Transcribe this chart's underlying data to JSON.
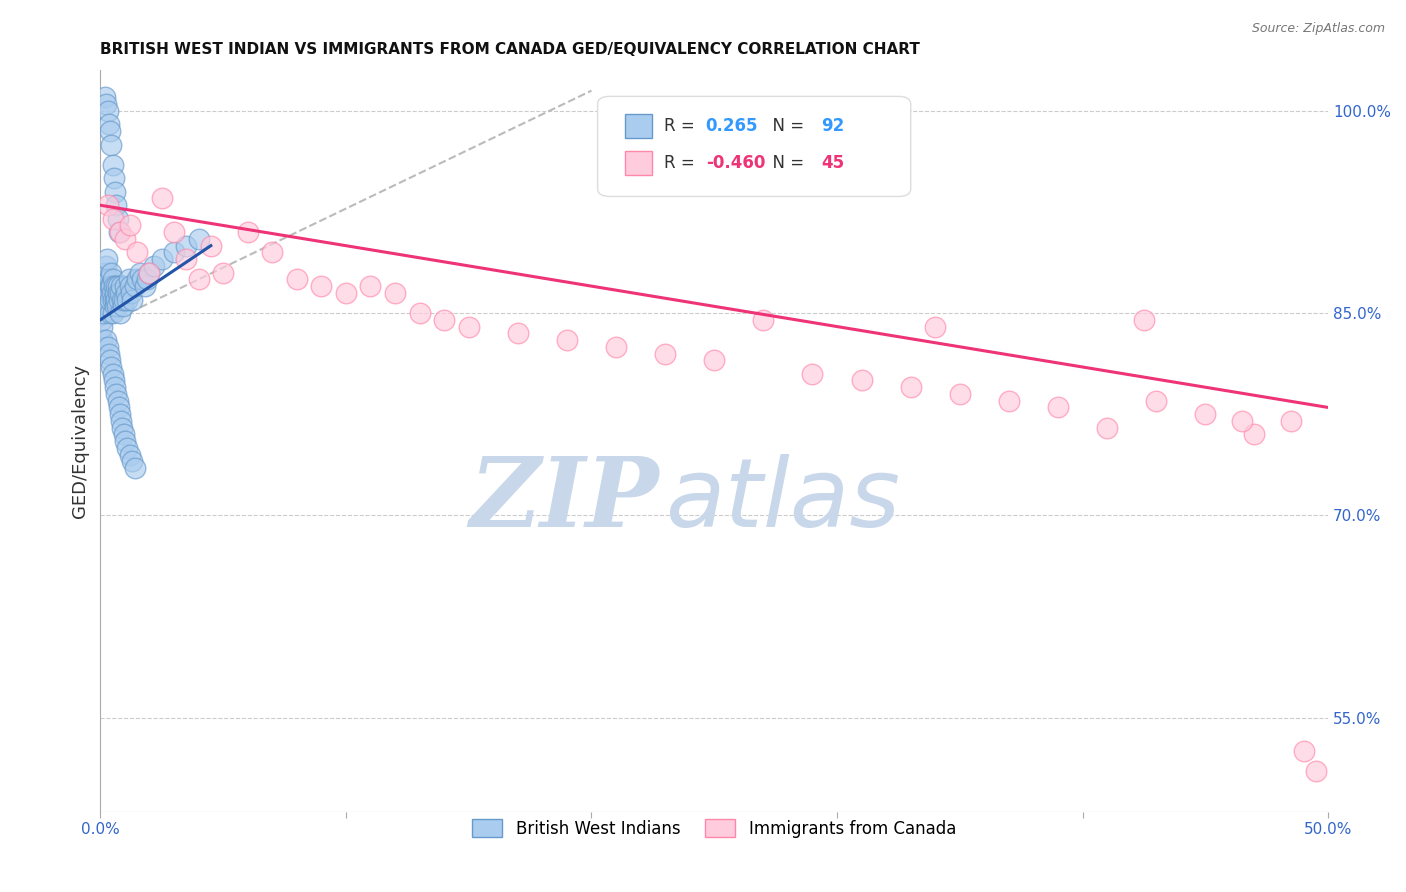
{
  "title": "BRITISH WEST INDIAN VS IMMIGRANTS FROM CANADA GED/EQUIVALENCY CORRELATION CHART",
  "source": "Source: ZipAtlas.com",
  "ylabel": "GED/Equivalency",
  "xlim": [
    0.0,
    50.0
  ],
  "ylim": [
    48.0,
    103.0
  ],
  "right_yticks": [
    100.0,
    85.0,
    70.0,
    55.0
  ],
  "right_ytick_labels": [
    "100.0%",
    "85.0%",
    "70.0%",
    "55.0%"
  ],
  "blue_color": "#6699cc",
  "pink_color": "#ff88aa",
  "blue_fill": "#aaccee",
  "pink_fill": "#ffccdd",
  "blue_scatter_x": [
    0.05,
    0.05,
    0.08,
    0.1,
    0.12,
    0.15,
    0.18,
    0.2,
    0.22,
    0.25,
    0.28,
    0.3,
    0.3,
    0.32,
    0.35,
    0.35,
    0.38,
    0.4,
    0.4,
    0.42,
    0.45,
    0.48,
    0.5,
    0.5,
    0.52,
    0.55,
    0.58,
    0.6,
    0.6,
    0.62,
    0.65,
    0.68,
    0.7,
    0.72,
    0.75,
    0.78,
    0.8,
    0.85,
    0.9,
    0.92,
    0.95,
    1.0,
    1.05,
    1.1,
    1.15,
    1.2,
    1.25,
    1.3,
    1.4,
    1.5,
    1.6,
    1.7,
    1.8,
    1.9,
    2.0,
    2.2,
    2.5,
    3.0,
    3.5,
    4.0,
    0.25,
    0.3,
    0.35,
    0.4,
    0.45,
    0.5,
    0.55,
    0.6,
    0.65,
    0.7,
    0.75,
    0.8,
    0.85,
    0.9,
    0.95,
    1.0,
    1.1,
    1.2,
    1.3,
    1.4,
    0.2,
    0.25,
    0.3,
    0.35,
    0.4,
    0.45,
    0.5,
    0.55,
    0.6,
    0.65,
    0.7,
    0.75
  ],
  "blue_scatter_y": [
    84.5,
    83.0,
    84.0,
    85.0,
    86.5,
    87.0,
    88.0,
    87.5,
    86.0,
    88.5,
    89.0,
    87.0,
    86.0,
    85.5,
    87.5,
    86.5,
    85.0,
    87.0,
    86.0,
    88.0,
    87.0,
    86.5,
    86.0,
    85.0,
    87.5,
    87.0,
    86.0,
    86.5,
    85.5,
    87.0,
    86.0,
    85.5,
    87.0,
    86.5,
    86.0,
    85.0,
    86.5,
    87.0,
    86.0,
    85.5,
    86.0,
    87.0,
    86.5,
    86.0,
    87.5,
    87.0,
    86.5,
    86.0,
    87.0,
    87.5,
    88.0,
    87.5,
    87.0,
    87.5,
    88.0,
    88.5,
    89.0,
    89.5,
    90.0,
    90.5,
    83.0,
    82.5,
    82.0,
    81.5,
    81.0,
    80.5,
    80.0,
    79.5,
    79.0,
    78.5,
    78.0,
    77.5,
    77.0,
    76.5,
    76.0,
    75.5,
    75.0,
    74.5,
    74.0,
    73.5,
    101.0,
    100.5,
    100.0,
    99.0,
    98.5,
    97.5,
    96.0,
    95.0,
    94.0,
    93.0,
    92.0,
    91.0
  ],
  "pink_scatter_x": [
    0.3,
    0.5,
    0.8,
    1.0,
    1.2,
    1.5,
    2.0,
    2.5,
    3.0,
    3.5,
    4.0,
    4.5,
    5.0,
    6.0,
    7.0,
    8.0,
    9.0,
    10.0,
    11.0,
    12.0,
    13.0,
    14.0,
    15.0,
    17.0,
    19.0,
    21.0,
    23.0,
    25.0,
    27.0,
    29.0,
    31.0,
    33.0,
    35.0,
    37.0,
    39.0,
    41.0,
    43.0,
    45.0,
    47.0,
    48.5,
    49.0,
    49.5,
    34.0,
    42.5,
    46.5
  ],
  "pink_scatter_y": [
    93.0,
    92.0,
    91.0,
    90.5,
    91.5,
    89.5,
    88.0,
    93.5,
    91.0,
    89.0,
    87.5,
    90.0,
    88.0,
    91.0,
    89.5,
    87.5,
    87.0,
    86.5,
    87.0,
    86.5,
    85.0,
    84.5,
    84.0,
    83.5,
    83.0,
    82.5,
    82.0,
    81.5,
    84.5,
    80.5,
    80.0,
    79.5,
    79.0,
    78.5,
    78.0,
    76.5,
    78.5,
    77.5,
    76.0,
    77.0,
    52.5,
    51.0,
    84.0,
    84.5,
    77.0
  ],
  "blue_trend_x": [
    0.0,
    4.5
  ],
  "blue_trend_y": [
    84.5,
    90.0
  ],
  "pink_trend_x": [
    0.0,
    50.0
  ],
  "pink_trend_y": [
    93.0,
    78.0
  ],
  "diag_line_x": [
    0.0,
    20.0
  ],
  "diag_line_y": [
    84.0,
    101.5
  ],
  "watermark_zip": "ZIP",
  "watermark_atlas": "atlas",
  "watermark_color": "#c8d8ea",
  "background_color": "#ffffff",
  "grid_color": "#cccccc",
  "legend_blue_r": "0.265",
  "legend_blue_n": "92",
  "legend_pink_r": "-0.460",
  "legend_pink_n": "45"
}
